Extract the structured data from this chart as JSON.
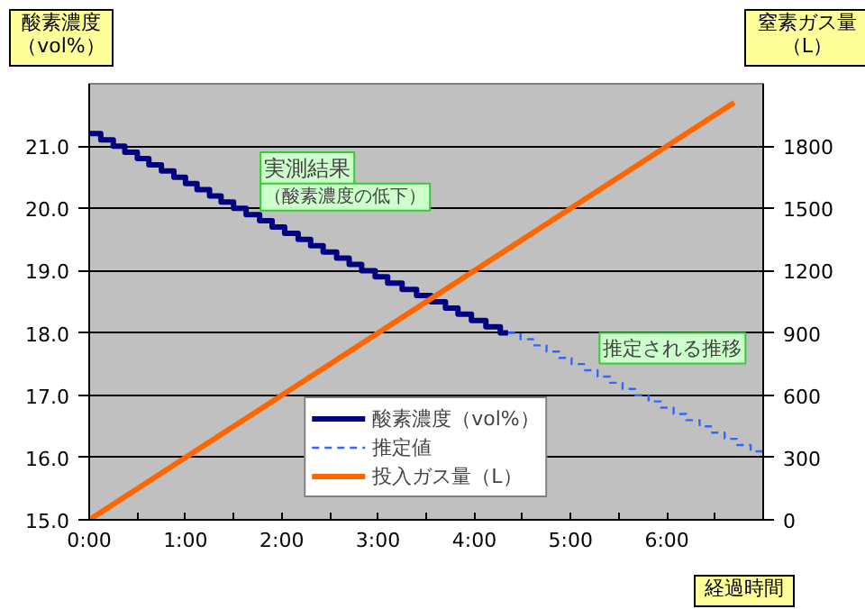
{
  "chart_data": {
    "type": "line",
    "xlabel": "経過時間",
    "ylabel": "酸素濃度（vol%）",
    "y2label": "窒素ガス量（L）",
    "xlim": [
      0,
      7
    ],
    "ylim": [
      15,
      22
    ],
    "y2lim": [
      0,
      2100
    ],
    "xticks": [
      {
        "value": 0,
        "label": "0:00"
      },
      {
        "value": 0.5,
        "label": null
      },
      {
        "value": 1,
        "label": "1:00"
      },
      {
        "value": 1.5,
        "label": null
      },
      {
        "value": 2,
        "label": "2:00"
      },
      {
        "value": 2.5,
        "label": null
      },
      {
        "value": 3,
        "label": "3:00"
      },
      {
        "value": 3.5,
        "label": null
      },
      {
        "value": 4,
        "label": "4:00"
      },
      {
        "value": 4.5,
        "label": null
      },
      {
        "value": 5,
        "label": "5:00"
      },
      {
        "value": 5.5,
        "label": null
      },
      {
        "value": 6,
        "label": "6:00"
      },
      {
        "value": 6.5,
        "label": null
      },
      {
        "value": 7,
        "label": null
      }
    ],
    "yticks": [
      {
        "value": 15,
        "label": "15.0"
      },
      {
        "value": 16,
        "label": "16.0"
      },
      {
        "value": 17,
        "label": "17.0"
      },
      {
        "value": 18,
        "label": "18.0"
      },
      {
        "value": 19,
        "label": "19.0"
      },
      {
        "value": 20,
        "label": "20.0"
      },
      {
        "value": 21,
        "label": "21.0"
      }
    ],
    "y2ticks": [
      0,
      300,
      600,
      900,
      1200,
      1500,
      1800
    ],
    "grid": "y",
    "legend": "bottom",
    "annotations": [
      "実測結果",
      "（酸素濃度の低下）",
      "推定される推移"
    ],
    "series": [
      {
        "name": "酸素濃度（vol%）",
        "type": "step",
        "color": "#000080",
        "line_style": "solid",
        "x": [
          0,
          0.12,
          0.25,
          0.37,
          0.5,
          0.62,
          0.75,
          0.88,
          1.0,
          1.12,
          1.25,
          1.37,
          1.5,
          1.63,
          1.77,
          1.9,
          2.03,
          2.17,
          2.3,
          2.43,
          2.57,
          2.7,
          2.83,
          2.97,
          3.1,
          3.25,
          3.4,
          3.55,
          3.7,
          3.83,
          3.97,
          4.12,
          4.27,
          4.35
        ],
        "values": [
          21.2,
          21.1,
          21.0,
          20.9,
          20.8,
          20.7,
          20.6,
          20.5,
          20.4,
          20.3,
          20.2,
          20.1,
          20.0,
          19.9,
          19.8,
          19.7,
          19.6,
          19.5,
          19.4,
          19.3,
          19.2,
          19.1,
          19.0,
          18.9,
          18.8,
          18.7,
          18.6,
          18.5,
          18.4,
          18.3,
          18.2,
          18.1,
          18.0,
          18.0
        ]
      },
      {
        "name": "推定値",
        "type": "step",
        "color": "#3366ff",
        "line_style": "dashed",
        "x": [
          4.35,
          4.48,
          4.61,
          4.75,
          4.88,
          5.01,
          5.14,
          5.28,
          5.41,
          5.54,
          5.67,
          5.81,
          5.94,
          6.07,
          6.2,
          6.34,
          6.47,
          6.6,
          6.73,
          6.87,
          7.0
        ],
        "values": [
          18.0,
          17.9,
          17.8,
          17.7,
          17.6,
          17.5,
          17.4,
          17.3,
          17.2,
          17.1,
          17.0,
          16.9,
          16.8,
          16.7,
          16.6,
          16.5,
          16.4,
          16.3,
          16.2,
          16.1,
          16.0
        ]
      },
      {
        "name": "投入ガス量（L）",
        "axis": "y2",
        "color": "#ff6600",
        "line_style": "solid",
        "x": [
          0,
          6.7
        ],
        "values": [
          0,
          2010
        ]
      }
    ]
  }
}
